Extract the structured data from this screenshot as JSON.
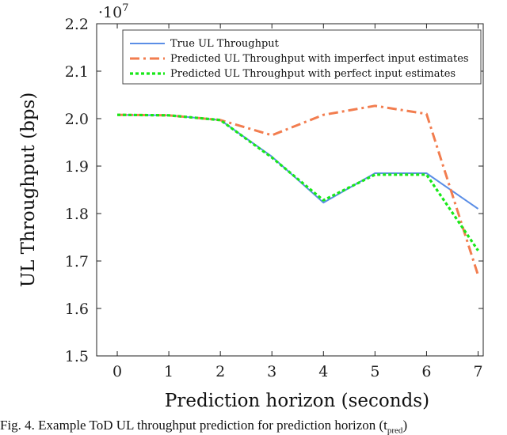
{
  "chart_data": {
    "type": "line",
    "x": [
      0,
      1,
      2,
      3,
      4,
      5,
      6,
      7
    ],
    "xlabel": "Prediction horizon (seconds)",
    "ylabel": "UL Throughput (bps)",
    "y_multiplier": "·10",
    "y_multiplier_exp": "7",
    "xlim": [
      -0.4,
      7.1
    ],
    "ylim": [
      1.5,
      2.2
    ],
    "xticks": [
      "0",
      "1",
      "2",
      "3",
      "4",
      "5",
      "6",
      "7"
    ],
    "yticks": [
      "1.5",
      "1.6",
      "1.7",
      "1.8",
      "1.9",
      "2.0",
      "2.1",
      "2.2"
    ],
    "grid": false,
    "legend_position": "top-right",
    "series": [
      {
        "name": "True UL Throughput",
        "color": "#5b8ee6",
        "style": "solid",
        "values": [
          2.008,
          2.007,
          1.997,
          1.92,
          1.823,
          1.885,
          1.885,
          1.81
        ]
      },
      {
        "name": "Predicted UL Throughput with imperfect input estimates",
        "color": "#f27d4f",
        "style": "dashdot",
        "values": [
          2.008,
          2.007,
          1.997,
          1.965,
          2.008,
          2.027,
          2.01,
          1.67
        ]
      },
      {
        "name": "Predicted UL Throughput with perfect input estimates",
        "color": "#18e818",
        "style": "dotted",
        "values": [
          2.008,
          2.007,
          1.997,
          1.918,
          1.828,
          1.882,
          1.882,
          1.722
        ]
      }
    ]
  },
  "caption": {
    "text": "Fig. 4. Example ToD UL throughput prediction for prediction horizon (t",
    "sub": "pred",
    "tail": ")"
  }
}
